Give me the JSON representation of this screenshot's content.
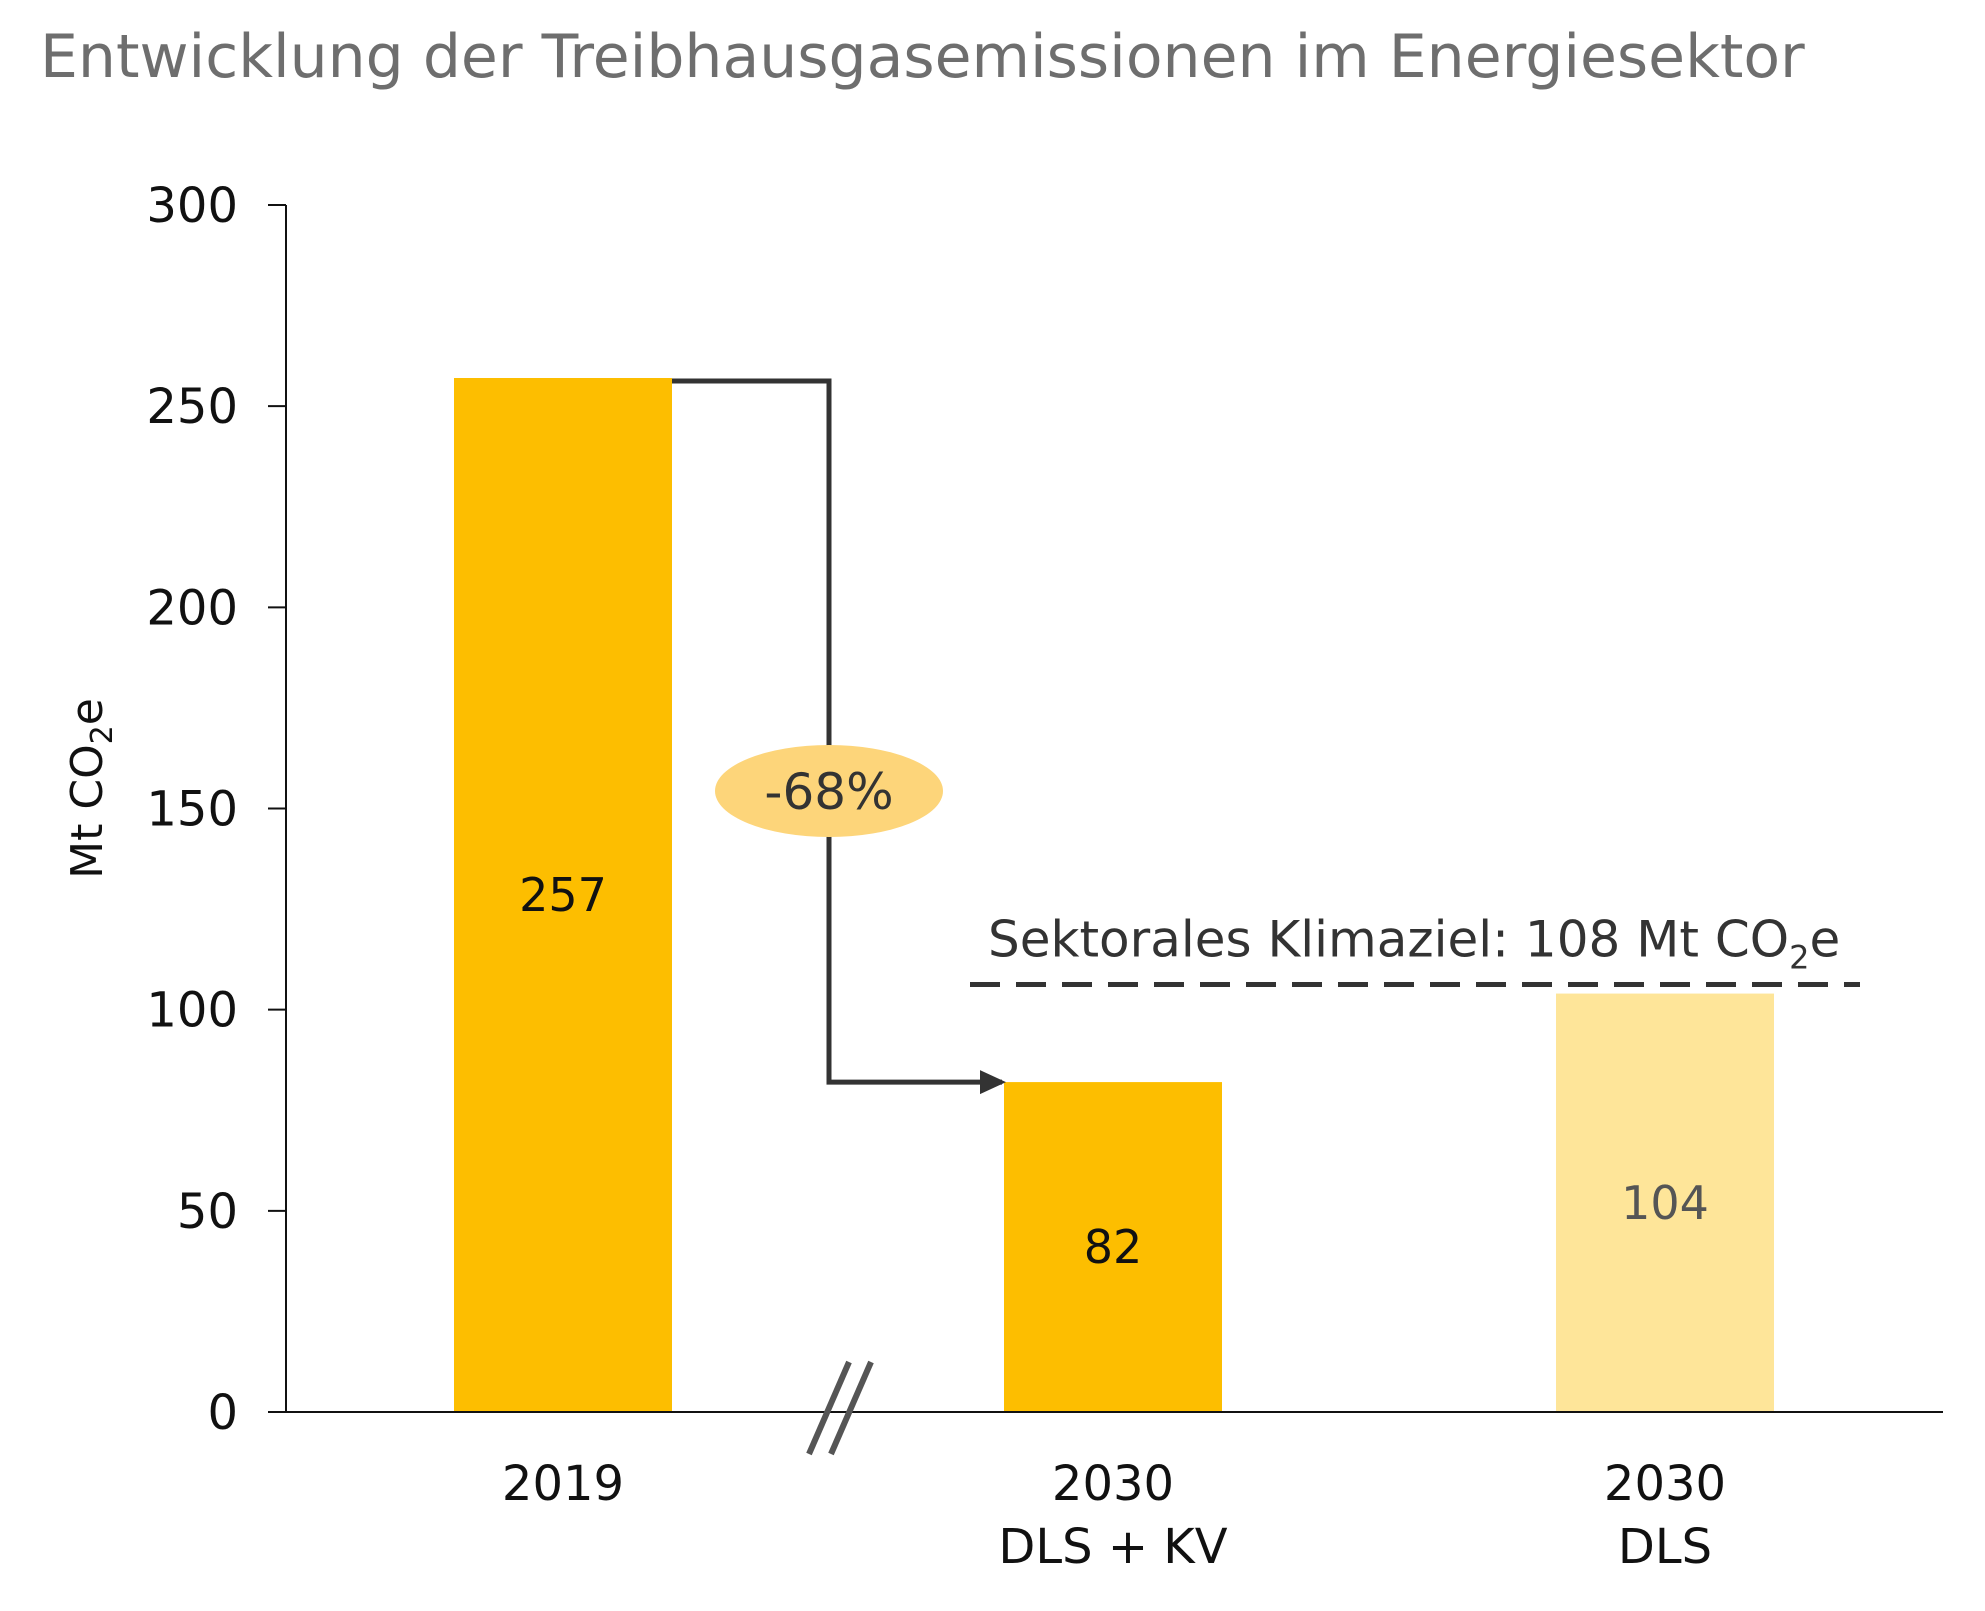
{
  "chart_data": {
    "type": "bar",
    "title": "Entwicklung der Treibhausgasemissionen im Energiesektor",
    "ylabel": "Mt CO₂e",
    "ylabel_parts": {
      "main": "Mt CO",
      "sub": "2",
      "tail": "e"
    },
    "ylim": [
      0,
      300
    ],
    "y_ticks": [
      0,
      50,
      100,
      150,
      200,
      250,
      300
    ],
    "categories": [
      {
        "lines": [
          "2019"
        ]
      },
      {
        "lines": [
          "2030",
          "DLS + KV"
        ]
      },
      {
        "lines": [
          "2030",
          "DLS"
        ]
      }
    ],
    "values": [
      257,
      82,
      104
    ],
    "value_labels": [
      "257",
      "82",
      "104"
    ],
    "bar_colors": [
      "#FDBE00",
      "#FDBE00",
      "#FEE599"
    ],
    "value_label_colors": [
      "#111111",
      "#111111",
      "#555555"
    ],
    "change_badge": {
      "text": "-68%",
      "color": "#FDD57A",
      "from_index": 0,
      "to_index": 1
    },
    "target_line": {
      "value": 108,
      "label_main": "Sektorales Klimaziel: 108 Mt CO",
      "label_sub": "2",
      "label_tail": "e",
      "style": "dashed"
    },
    "axis_break_between": [
      0,
      1
    ],
    "grid": false,
    "legend": "none"
  }
}
